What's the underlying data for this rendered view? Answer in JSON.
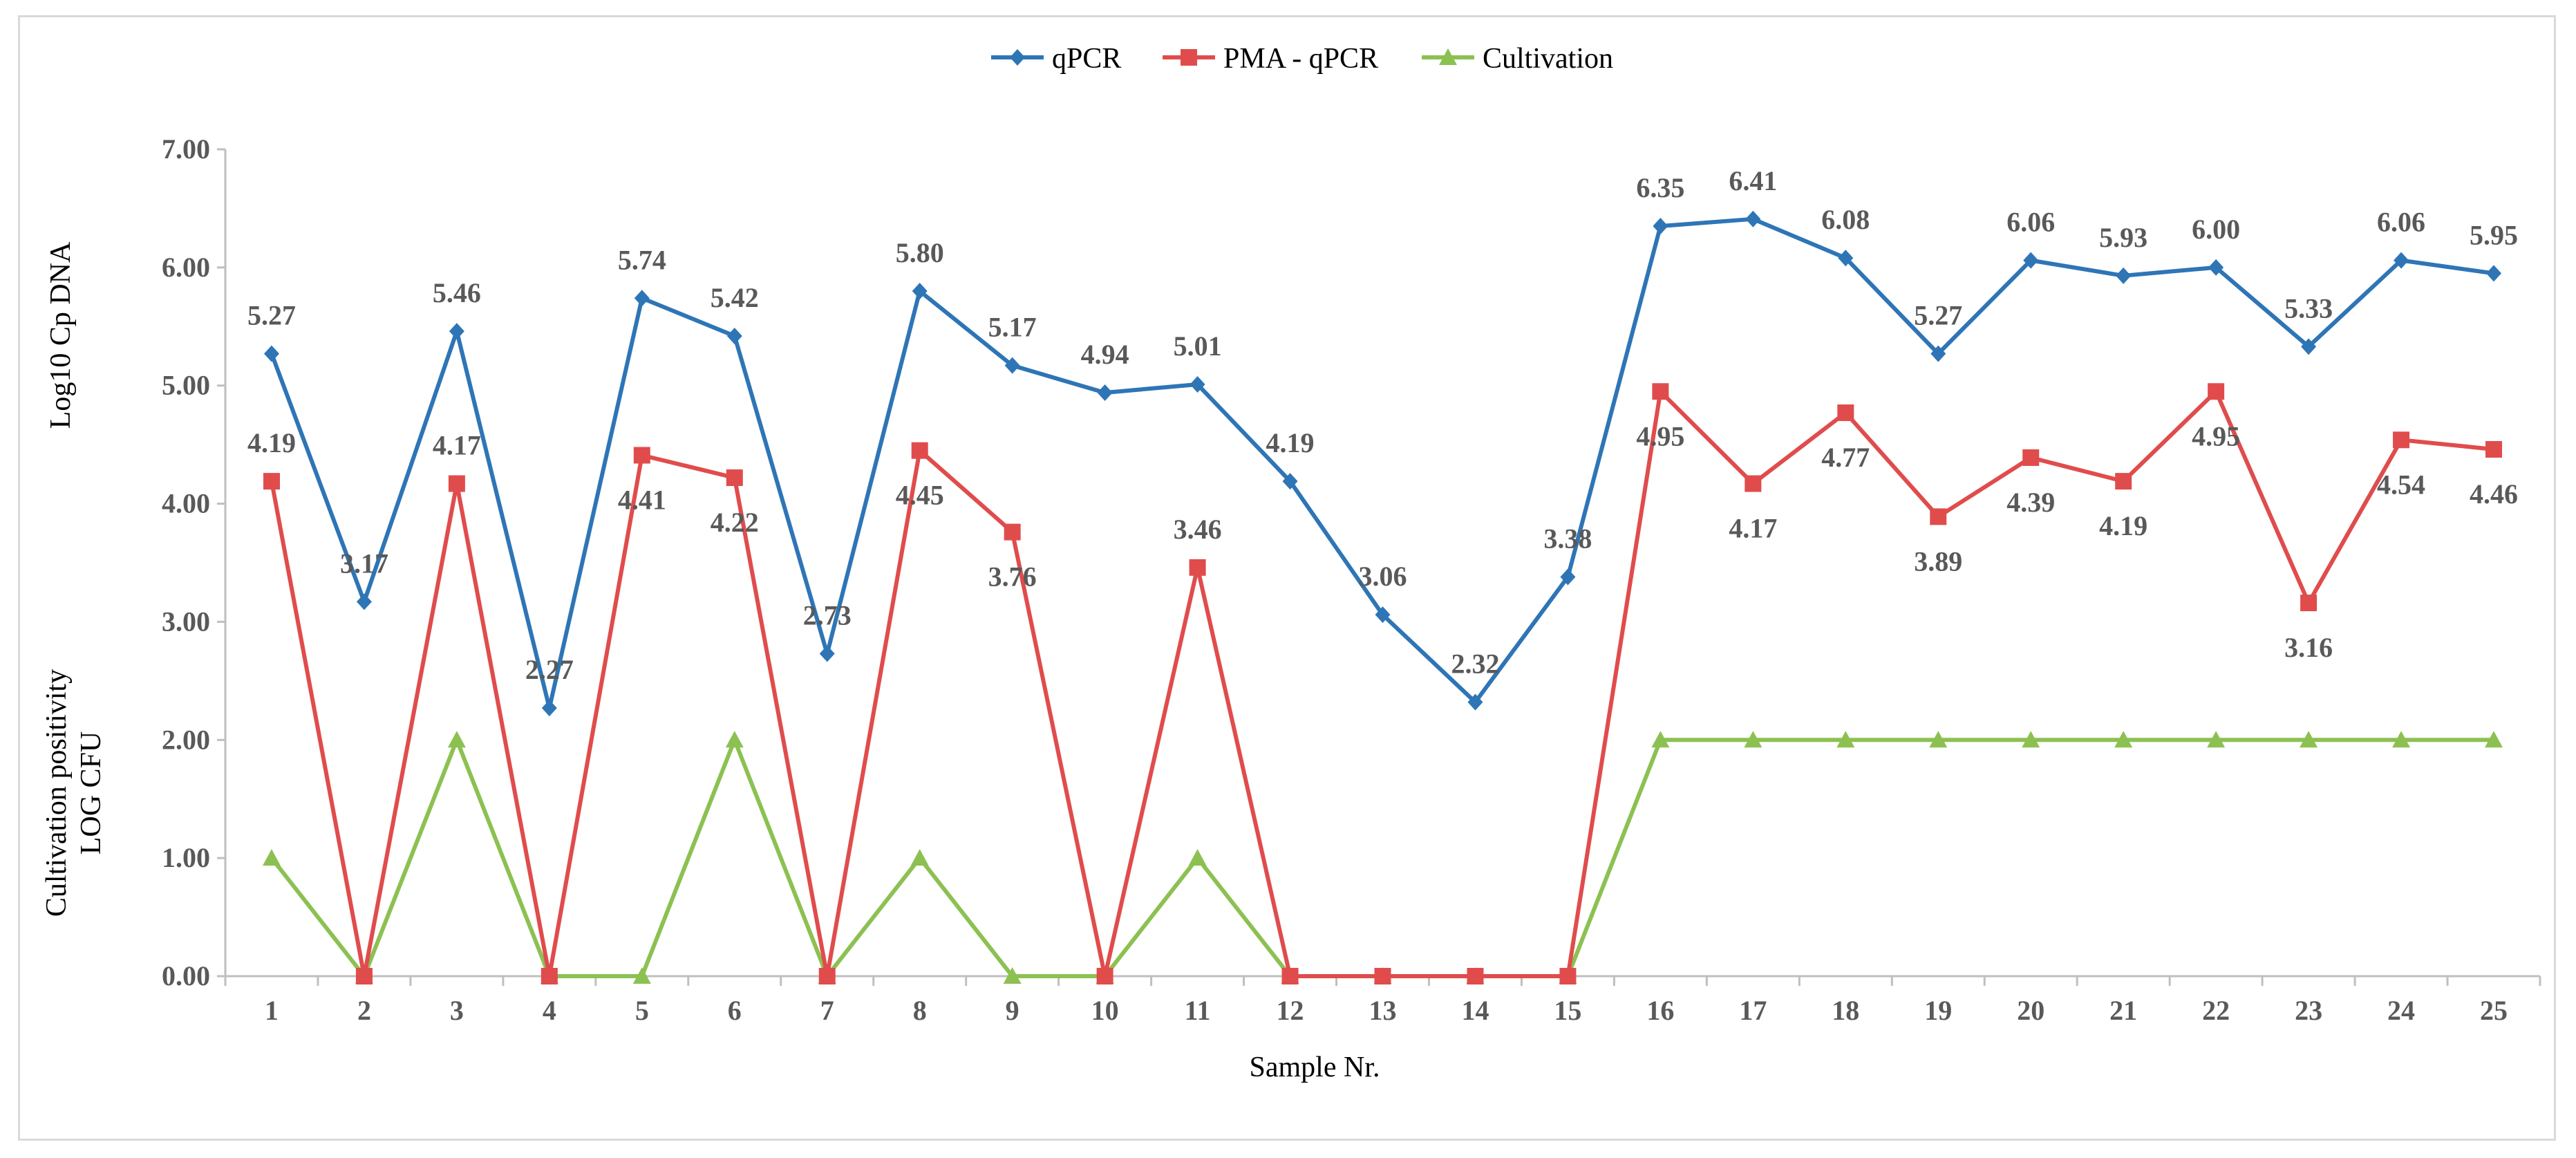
{
  "chart_data": {
    "type": "line",
    "title": "",
    "xlabel": "Sample Nr.",
    "ylabel_top": "Log10 Cp DNA",
    "ylabel_bottom_line1": "Cultivation positivity",
    "ylabel_bottom_line2": "LOG CFU",
    "ylim": [
      0,
      7
    ],
    "yticks": [
      "0.00",
      "1.00",
      "2.00",
      "3.00",
      "4.00",
      "5.00",
      "6.00",
      "7.00"
    ],
    "grid": false,
    "legend_position": "top-center",
    "categories": [
      "1",
      "2",
      "3",
      "4",
      "5",
      "6",
      "7",
      "8",
      "9",
      "10",
      "11",
      "12",
      "13",
      "14",
      "15",
      "16",
      "17",
      "18",
      "19",
      "20",
      "21",
      "22",
      "23",
      "24",
      "25"
    ],
    "series": [
      {
        "name": "qPCR",
        "color": "#2e75b6",
        "marker": "diamond",
        "values": [
          5.27,
          3.17,
          5.46,
          2.27,
          5.74,
          5.42,
          2.73,
          5.8,
          5.17,
          4.94,
          5.01,
          4.19,
          3.06,
          2.32,
          3.38,
          6.35,
          6.41,
          6.08,
          5.27,
          6.06,
          5.93,
          6.0,
          5.33,
          6.06,
          5.95
        ],
        "labels": [
          "5.27",
          "3.17",
          "5.46",
          "2.27",
          "5.74",
          "5.42",
          "2.73",
          "5.80",
          "5.17",
          "4.94",
          "5.01",
          "4.19",
          "3.06",
          "2.32",
          "3.38",
          "6.35",
          "6.41",
          "6.08",
          "5.27",
          "6.06",
          "5.93",
          "6.00",
          "5.33",
          "6.06",
          "5.95"
        ]
      },
      {
        "name": "PMA - qPCR",
        "color": "#e04c4c",
        "marker": "square",
        "values": [
          4.19,
          0,
          4.17,
          0,
          4.41,
          4.22,
          0,
          4.45,
          3.76,
          0,
          3.46,
          0,
          0,
          0,
          0,
          4.95,
          4.17,
          4.77,
          3.89,
          4.39,
          4.19,
          4.95,
          3.16,
          4.54,
          4.46
        ],
        "labels": [
          "4.19",
          "",
          "4.17",
          "",
          "4.41",
          "4.22",
          "",
          "4.45",
          "3.76",
          "",
          "3.46",
          "",
          "",
          "",
          "",
          "4.95",
          "4.17",
          "4.77",
          "3.89",
          "4.39",
          "4.19",
          "4.95",
          "3.16",
          "4.54",
          "4.46"
        ]
      },
      {
        "name": "Cultivation",
        "color": "#8cc152",
        "marker": "triangle",
        "values": [
          1,
          0,
          2,
          0,
          0,
          2,
          0,
          1,
          0,
          0,
          1,
          0,
          0,
          0,
          0,
          2,
          2,
          2,
          2,
          2,
          2,
          2,
          2,
          2,
          2
        ],
        "labels": []
      }
    ]
  }
}
